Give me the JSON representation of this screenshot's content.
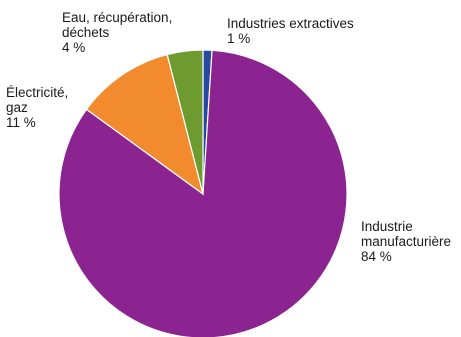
{
  "chart_data": {
    "type": "pie",
    "slices": [
      {
        "label_lines": [
          "Industries extractives"
        ],
        "pct_text": "1 %",
        "value": 1,
        "color": "#2749a0"
      },
      {
        "label_lines": [
          "Industrie",
          "manufacturière"
        ],
        "pct_text": "84 %",
        "value": 84,
        "color": "#8b2390"
      },
      {
        "label_lines": [
          "Électricité,",
          "gaz"
        ],
        "pct_text": "11 %",
        "value": 11,
        "color": "#f28a2e"
      },
      {
        "label_lines": [
          "Eau, récupération,",
          "déchets"
        ],
        "pct_text": "4 %",
        "value": 4,
        "color": "#6e9b2f"
      }
    ]
  }
}
